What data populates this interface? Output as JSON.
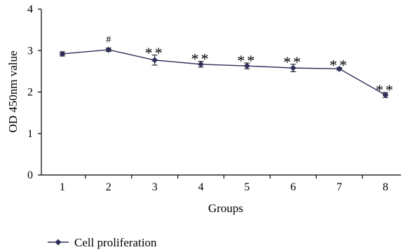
{
  "chart_data": {
    "type": "line",
    "xlabel": "Groups",
    "ylabel": "OD 450nm value",
    "categories": [
      "1",
      "2",
      "3",
      "4",
      "5",
      "6",
      "7",
      "8"
    ],
    "yticks": [
      "0",
      "1",
      "2",
      "3",
      "4"
    ],
    "ylim": [
      0,
      4
    ],
    "grid": false,
    "legend_position": "bottom-left",
    "series": [
      {
        "name": "Cell proliferation",
        "values": [
          2.92,
          3.02,
          2.77,
          2.67,
          2.63,
          2.58,
          2.56,
          1.93
        ],
        "errors": [
          0.05,
          0.04,
          0.12,
          0.07,
          0.07,
          0.09,
          0.03,
          0.06
        ],
        "color": "#2e2e5a"
      }
    ],
    "annotations": [
      "",
      "#",
      "**",
      "**",
      "**",
      "**",
      "**",
      "**"
    ]
  }
}
